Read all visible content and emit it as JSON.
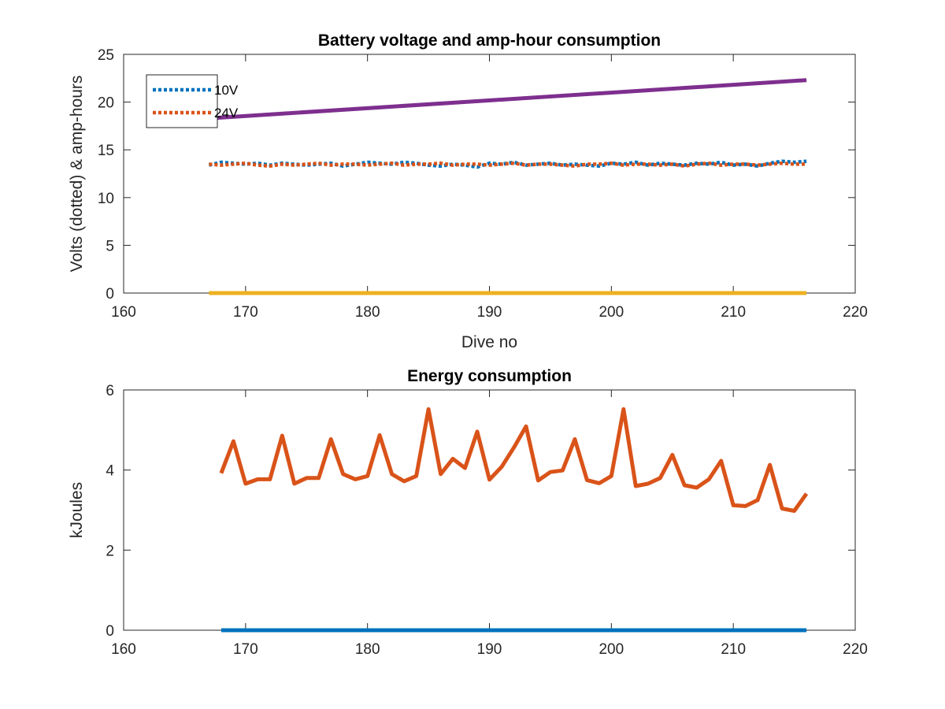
{
  "chart_data": [
    {
      "type": "line",
      "title": "Battery voltage and amp-hour consumption",
      "xlabel": "Dive no",
      "ylabel": "Volts (dotted) & amp-hours",
      "xlim": [
        160,
        220
      ],
      "ylim": [
        0,
        25
      ],
      "xticks": [
        160,
        170,
        180,
        190,
        200,
        210,
        220
      ],
      "yticks": [
        0,
        5,
        10,
        15,
        20,
        25
      ],
      "grid": false,
      "legend": "top-left",
      "series": [
        {
          "name": "10V",
          "style": "dotted",
          "color": "#0072BD",
          "x": [
            167,
            168,
            169,
            170,
            171,
            172,
            173,
            174,
            175,
            176,
            177,
            178,
            179,
            180,
            181,
            182,
            183,
            184,
            185,
            186,
            187,
            188,
            189,
            190,
            191,
            192,
            193,
            194,
            195,
            196,
            197,
            198,
            199,
            200,
            201,
            202,
            203,
            204,
            205,
            206,
            207,
            208,
            209,
            210,
            211,
            212,
            213,
            214,
            215,
            216
          ],
          "values": [
            13.4,
            13.7,
            13.6,
            13.5,
            13.6,
            13.4,
            13.6,
            13.5,
            13.4,
            13.5,
            13.6,
            13.3,
            13.5,
            13.7,
            13.6,
            13.5,
            13.7,
            13.6,
            13.4,
            13.3,
            13.5,
            13.4,
            13.2,
            13.6,
            13.5,
            13.7,
            13.4,
            13.5,
            13.6,
            13.4,
            13.5,
            13.4,
            13.3,
            13.6,
            13.5,
            13.7,
            13.4,
            13.6,
            13.5,
            13.4,
            13.6,
            13.5,
            13.7,
            13.4,
            13.5,
            13.3,
            13.6,
            13.8,
            13.7,
            13.8
          ]
        },
        {
          "name": "24V",
          "style": "dotted",
          "color": "#D95319",
          "x": [
            167,
            168,
            169,
            170,
            171,
            172,
            173,
            174,
            175,
            176,
            177,
            178,
            179,
            180,
            181,
            182,
            183,
            184,
            185,
            186,
            187,
            188,
            189,
            190,
            191,
            192,
            193,
            194,
            195,
            196,
            197,
            198,
            199,
            200,
            201,
            202,
            203,
            204,
            205,
            206,
            207,
            208,
            209,
            210,
            211,
            212,
            213,
            214,
            215,
            216
          ],
          "values": [
            13.5,
            13.4,
            13.5,
            13.6,
            13.4,
            13.3,
            13.5,
            13.4,
            13.5,
            13.6,
            13.4,
            13.5,
            13.5,
            13.4,
            13.5,
            13.6,
            13.4,
            13.5,
            13.5,
            13.6,
            13.4,
            13.5,
            13.5,
            13.4,
            13.5,
            13.6,
            13.4,
            13.5,
            13.5,
            13.4,
            13.3,
            13.5,
            13.5,
            13.6,
            13.4,
            13.5,
            13.5,
            13.4,
            13.5,
            13.3,
            13.5,
            13.6,
            13.4,
            13.5,
            13.5,
            13.4,
            13.5,
            13.6,
            13.5,
            13.5
          ]
        },
        {
          "style": "solid",
          "color": "#7E2F8E",
          "x": [
            167,
            216
          ],
          "values": [
            18.3,
            22.3
          ]
        },
        {
          "style": "solid",
          "color": "#EDB120",
          "x": [
            167,
            216
          ],
          "values": [
            0,
            0
          ]
        }
      ]
    },
    {
      "type": "line",
      "title": "Energy consumption",
      "xlabel": "",
      "ylabel": "kJoules",
      "xlim": [
        160,
        220
      ],
      "ylim": [
        0,
        6
      ],
      "xticks": [
        160,
        170,
        180,
        190,
        200,
        210,
        220
      ],
      "yticks": [
        0,
        2,
        4,
        6
      ],
      "grid": false,
      "series": [
        {
          "style": "solid",
          "color": "#D95319",
          "x": [
            168,
            169,
            170,
            171,
            172,
            173,
            174,
            175,
            176,
            177,
            178,
            179,
            180,
            181,
            182,
            183,
            184,
            185,
            186,
            187,
            188,
            189,
            190,
            191,
            192,
            193,
            194,
            195,
            196,
            197,
            198,
            199,
            200,
            201,
            202,
            203,
            204,
            205,
            206,
            207,
            208,
            209,
            210,
            211,
            212,
            213,
            214,
            215,
            216
          ],
          "values": [
            3.92,
            4.72,
            3.66,
            3.77,
            3.77,
            4.86,
            3.66,
            3.8,
            3.8,
            4.77,
            3.9,
            3.77,
            3.85,
            4.87,
            3.9,
            3.72,
            3.85,
            5.52,
            3.9,
            4.28,
            4.05,
            4.96,
            3.76,
            4.08,
            4.56,
            5.09,
            3.74,
            3.95,
            3.99,
            4.77,
            3.75,
            3.67,
            3.85,
            5.52,
            3.6,
            3.66,
            3.8,
            4.38,
            3.62,
            3.56,
            3.77,
            4.23,
            3.12,
            3.1,
            3.25,
            4.13,
            3.04,
            2.98,
            3.41
          ]
        },
        {
          "style": "solid",
          "color": "#0072BD",
          "x": [
            168,
            216
          ],
          "values": [
            0,
            0
          ]
        }
      ]
    }
  ]
}
